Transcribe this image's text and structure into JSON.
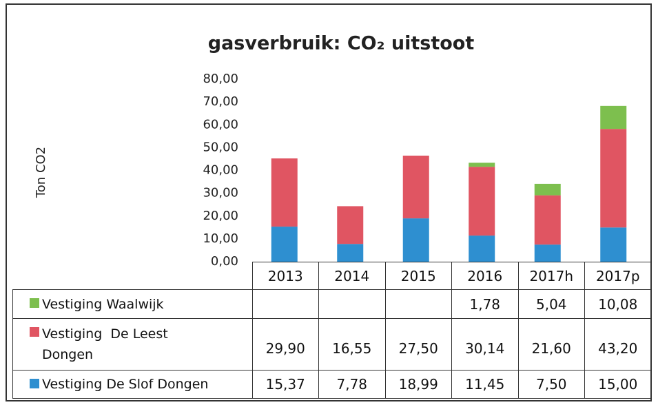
{
  "chart_data": {
    "type": "bar",
    "stacked": true,
    "title": "gasverbruik: CO₂ uitstoot",
    "y_label": "Ton CO2",
    "categories": [
      "2013",
      "2014",
      "2015",
      "2016",
      "2017h",
      "2017p"
    ],
    "series": [
      {
        "name": "Vestiging Waalwijk",
        "color": "#7dbf4e",
        "values": [
          null,
          null,
          null,
          1.78,
          5.04,
          10.08
        ],
        "value_labels": [
          null,
          null,
          null,
          "1,78",
          "5,04",
          "10,08"
        ]
      },
      {
        "name": "Vestiging  De Leest Dongen",
        "color": "#e05562",
        "values": [
          29.9,
          16.55,
          27.5,
          30.14,
          21.6,
          43.2
        ],
        "value_labels": [
          "29,90",
          "16,55",
          "27,50",
          "30,14",
          "21,60",
          "43,20"
        ]
      },
      {
        "name": "Vestiging  De Slof Dongen",
        "color": "#2e8fd0",
        "values": [
          15.37,
          7.78,
          18.99,
          11.45,
          7.5,
          15.0
        ],
        "value_labels": [
          "15,37",
          "7,78",
          "18,99",
          "11,45",
          "7,50",
          "15,00"
        ]
      }
    ],
    "ylim": [
      0,
      80
    ],
    "yticks": [
      {
        "value": 0,
        "label": "0,00"
      },
      {
        "value": 10,
        "label": "10,00"
      },
      {
        "value": 20,
        "label": "20,00"
      },
      {
        "value": 30,
        "label": "30,00"
      },
      {
        "value": 40,
        "label": "40,00"
      },
      {
        "value": 50,
        "label": "50,00"
      },
      {
        "value": 60,
        "label": "60,00"
      },
      {
        "value": 70,
        "label": "70,00"
      },
      {
        "value": 80,
        "label": "80,00"
      }
    ],
    "grid": false
  }
}
